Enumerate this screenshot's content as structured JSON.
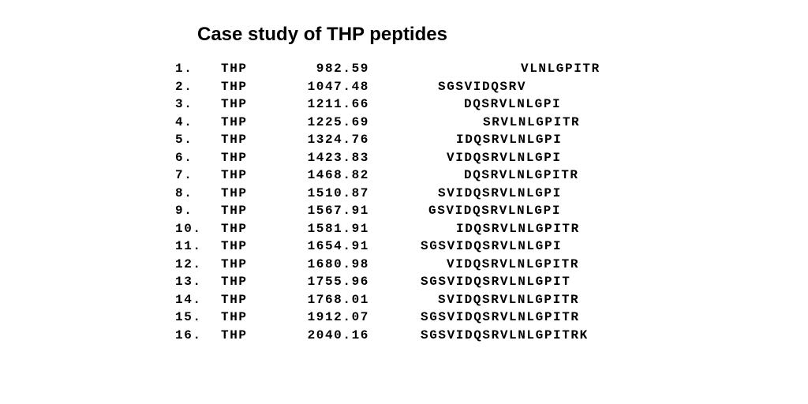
{
  "title": "Case study of THP peptides",
  "table": {
    "rows": [
      {
        "index": "1.",
        "protein": "THP",
        "mass": "982.59",
        "sequence": "VLNLGPITR"
      },
      {
        "index": "2.",
        "protein": "THP",
        "mass": "1047.48",
        "sequence": "SGSVIDQSRV"
      },
      {
        "index": "3.",
        "protein": "THP",
        "mass": "1211.66",
        "sequence": "DQSRVLNLGPI"
      },
      {
        "index": "4.",
        "protein": "THP",
        "mass": "1225.69",
        "sequence": "SRVLNLGPITR"
      },
      {
        "index": "5.",
        "protein": "THP",
        "mass": "1324.76",
        "sequence": "IDQSRVLNLGPI"
      },
      {
        "index": "6.",
        "protein": "THP",
        "mass": "1423.83",
        "sequence": "VIDQSRVLNLGPI"
      },
      {
        "index": "7.",
        "protein": "THP",
        "mass": "1468.82",
        "sequence": "DQSRVLNLGPITR"
      },
      {
        "index": "8.",
        "protein": "THP",
        "mass": "1510.87",
        "sequence": "SVIDQSRVLNLGPI"
      },
      {
        "index": "9.",
        "protein": "THP",
        "mass": "1567.91",
        "sequence": "GSVIDQSRVLNLGPI"
      },
      {
        "index": "10.",
        "protein": "THP",
        "mass": "1581.91",
        "sequence": "IDQSRVLNLGPITR"
      },
      {
        "index": "11.",
        "protein": "THP",
        "mass": "1654.91",
        "sequence": "SGSVIDQSRVLNLGPI"
      },
      {
        "index": "12.",
        "protein": "THP",
        "mass": "1680.98",
        "sequence": "VIDQSRVLNLGPITR"
      },
      {
        "index": "13.",
        "protein": "THP",
        "mass": "1755.96",
        "sequence": "SGSVIDQSRVLNLGPIT"
      },
      {
        "index": "14.",
        "protein": "THP",
        "mass": "1768.01",
        "sequence": "SVIDQSRVLNLGPITR"
      },
      {
        "index": "15.",
        "protein": "THP",
        "mass": "1912.07",
        "sequence": "SGSVIDQSRVLNLGPITR"
      },
      {
        "index": "16.",
        "protein": "THP",
        "mass": "2040.16",
        "sequence": "SGSVIDQSRVLNLGPITRK"
      }
    ]
  }
}
